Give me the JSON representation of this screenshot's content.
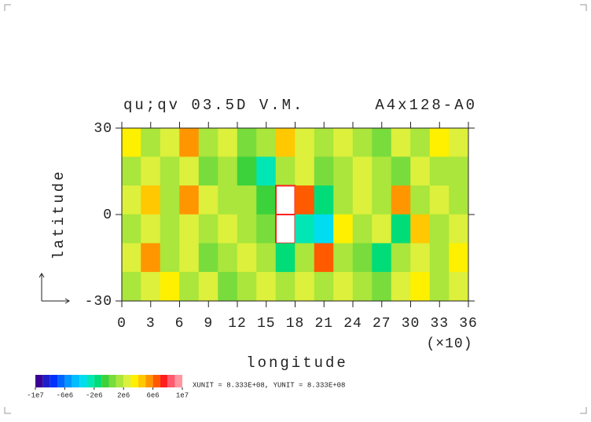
{
  "chart_data": {
    "type": "contour",
    "title": "qu;qv 03.5D V.M.",
    "subtitle": "A4x128-A0",
    "x_label": "longitude",
    "x_multiplier": "(×10)",
    "y_label": "latitude",
    "unit_note": "XUNIT = 8.333E+08, YUNIT = 8.333E+08",
    "xlim": [
      0,
      36
    ],
    "ylim": [
      -30,
      30
    ],
    "xticks": [
      0,
      3,
      6,
      9,
      12,
      15,
      18,
      21,
      24,
      27,
      30,
      33,
      36
    ],
    "yticks": [
      -30,
      0,
      30
    ],
    "x": [
      0,
      2,
      4,
      6,
      8,
      10,
      12,
      14,
      16,
      18,
      20,
      22,
      24,
      26,
      28,
      30,
      32,
      34,
      36
    ],
    "y": [
      30,
      20,
      10,
      0,
      -10,
      -20,
      -30
    ],
    "values": [
      [
        3000000,
        1000000,
        2000000,
        5000000,
        1000000,
        2000000,
        0,
        1000000,
        4000000,
        2000000,
        1000000,
        2000000,
        1000000,
        0,
        2000000,
        1000000,
        3000000,
        2000000
      ],
      [
        1000000,
        2000000,
        1000000,
        2000000,
        0,
        1000000,
        -1000000,
        -3000000,
        1000000,
        2000000,
        0,
        1000000,
        2000000,
        1000000,
        0,
        2000000,
        1000000,
        1000000
      ],
      [
        2000000,
        4000000,
        1000000,
        5000000,
        2000000,
        1000000,
        1000000,
        -1000000,
        12000000,
        6000000,
        -2000000,
        1000000,
        2000000,
        1000000,
        5000000,
        1000000,
        2000000,
        1000000
      ],
      [
        1000000,
        2000000,
        1000000,
        2000000,
        1000000,
        2000000,
        1000000,
        0,
        12000000,
        -3000000,
        -4000000,
        3000000,
        1000000,
        2000000,
        -2000000,
        4000000,
        1000000,
        2000000
      ],
      [
        2000000,
        5000000,
        1000000,
        2000000,
        0,
        1000000,
        2000000,
        1000000,
        -2000000,
        1000000,
        6000000,
        1000000,
        0,
        -2000000,
        1000000,
        2000000,
        1000000,
        3000000
      ],
      [
        1000000,
        2000000,
        3000000,
        1000000,
        2000000,
        0,
        1000000,
        2000000,
        1000000,
        2000000,
        1000000,
        2000000,
        1000000,
        0,
        2000000,
        3000000,
        1000000,
        2000000
      ]
    ],
    "colorbar": {
      "lim": [
        -10000000,
        10000000
      ],
      "ticks": [
        {
          "value": -10000000,
          "label": "-1e7"
        },
        {
          "value": -6000000,
          "label": "-6e6"
        },
        {
          "value": -2000000,
          "label": "-2e6"
        },
        {
          "value": 2000000,
          "label": "2e6"
        },
        {
          "value": 6000000,
          "label": "6e6"
        },
        {
          "value": 10000000,
          "label": "1e7"
        }
      ],
      "colors": [
        "#3c0096",
        "#1e1ec8",
        "#0032ff",
        "#0064ff",
        "#0096ff",
        "#00beff",
        "#00dcf0",
        "#00e6b4",
        "#00dc78",
        "#3cd23c",
        "#78dc3c",
        "#aae63c",
        "#dcf03c",
        "#fff000",
        "#ffc800",
        "#ff9600",
        "#ff5a00",
        "#ff1e1e",
        "#ff5a6e",
        "#ff96a0"
      ]
    }
  }
}
